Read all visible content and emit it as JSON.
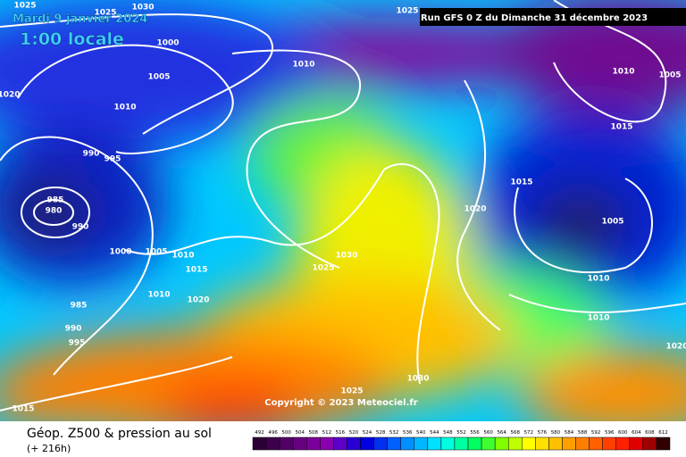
{
  "header": {
    "date": "Mardi 9 janvier 2024",
    "time": "1:00 locale",
    "run": "Run GFS 0 Z du Dimanche 31 décembre 2023"
  },
  "copyright": "Copyright © 2023 Meteociel.fr",
  "footer": {
    "title": "Géop. Z500 & pression au sol",
    "lead": "(+ 216h)"
  },
  "isobar_labels": [
    1025,
    1025,
    1030,
    1025,
    1000,
    1010,
    1005,
    1020,
    1010,
    990,
    995,
    985,
    980,
    990,
    1000,
    1005,
    1010,
    1015,
    1025,
    1030,
    1010,
    1020,
    985,
    990,
    995,
    1030,
    1025,
    1015,
    1010,
    1005,
    1015,
    1015,
    1020,
    1005,
    1010,
    1010,
    1020
  ],
  "scale": {
    "values": [
      492,
      496,
      500,
      504,
      508,
      512,
      516,
      520,
      524,
      528,
      532,
      536,
      540,
      544,
      548,
      552,
      556,
      560,
      564,
      568,
      572,
      576,
      580,
      584,
      588,
      592,
      596,
      600,
      604,
      608,
      612
    ],
    "colors": [
      "#2b0036",
      "#3d004d",
      "#520066",
      "#66007f",
      "#7a0099",
      "#8a00b0",
      "#5c00c8",
      "#2800d4",
      "#0000e0",
      "#0030f0",
      "#0060ff",
      "#0090ff",
      "#00b8ff",
      "#00e0ff",
      "#00ffe0",
      "#00ffa0",
      "#00ff60",
      "#40ff30",
      "#80ff00",
      "#c0ff00",
      "#ffff00",
      "#ffe000",
      "#ffc000",
      "#ffa000",
      "#ff8000",
      "#ff6000",
      "#ff4000",
      "#ff2000",
      "#e00000",
      "#a00000",
      "#300000"
    ]
  }
}
